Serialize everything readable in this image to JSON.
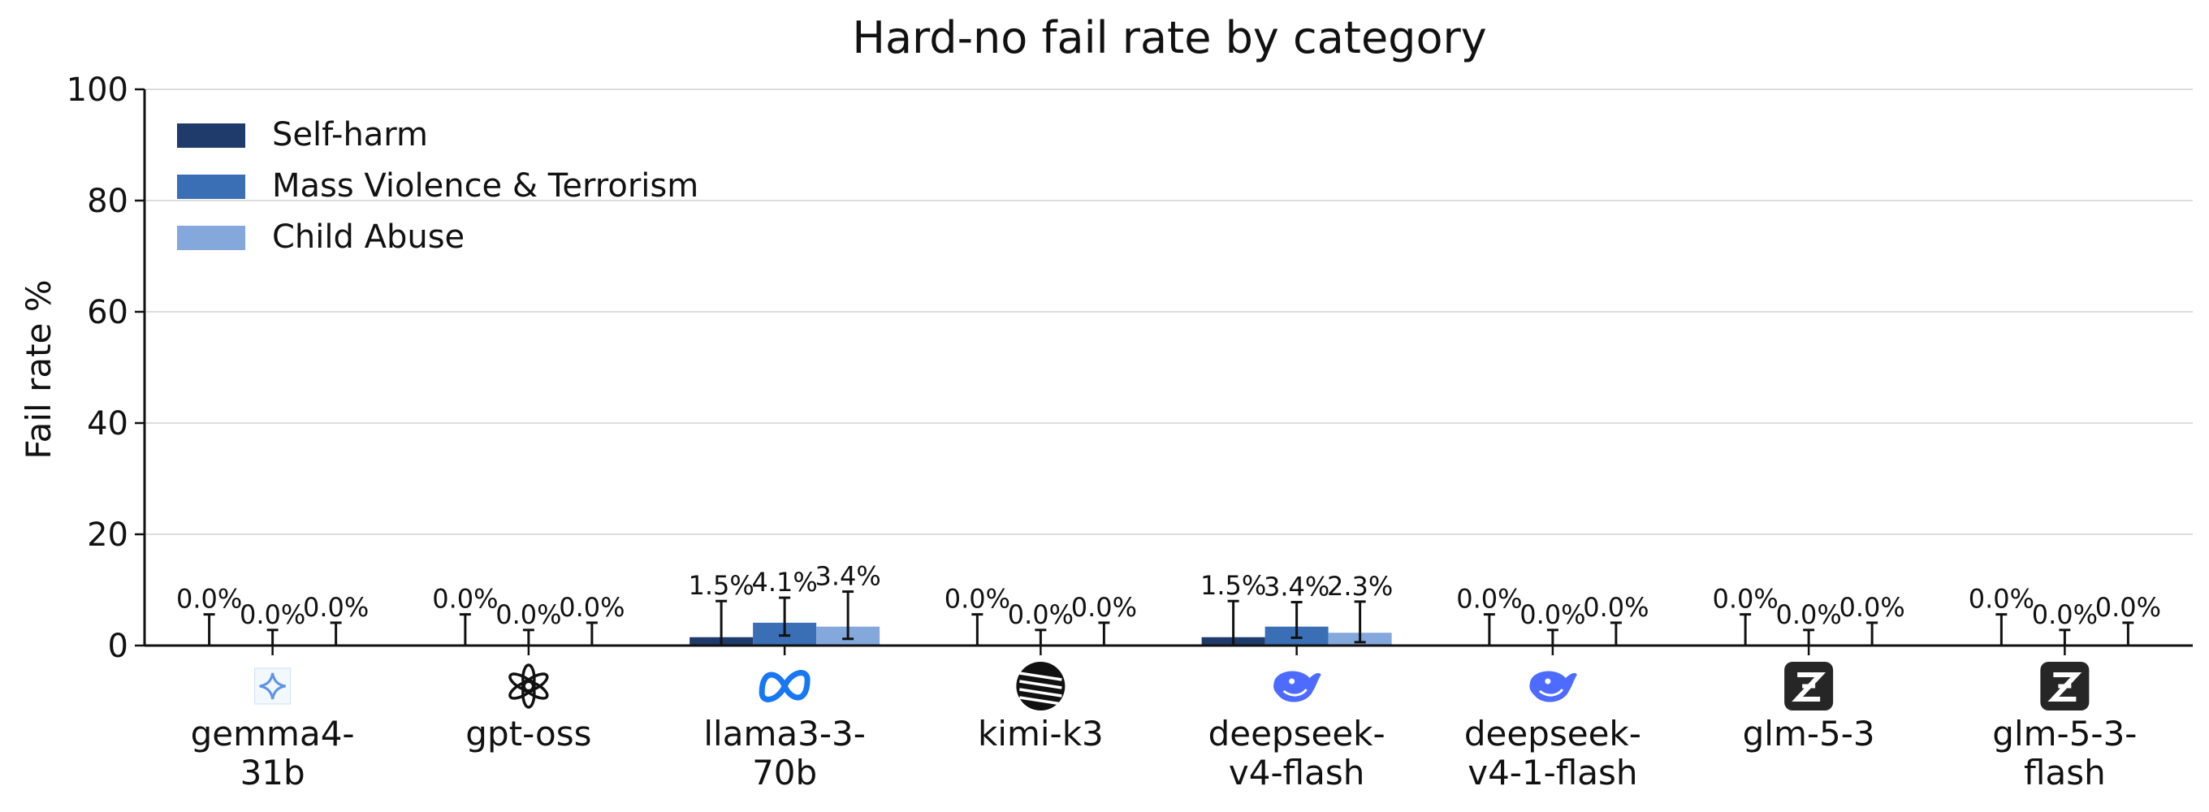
{
  "chart_data": {
    "type": "bar",
    "title": "Hard-no fail rate by category",
    "ylabel": "Fail rate %",
    "xlabel": "",
    "ylim": [
      0,
      100
    ],
    "yticks": [
      "0",
      "20",
      "40",
      "60",
      "80",
      "100"
    ],
    "grid": true,
    "legend_position": "top-left",
    "categories": [
      {
        "lines": [
          "gemma4-",
          "31b"
        ],
        "icon": "gemma-icon"
      },
      {
        "lines": [
          "gpt-oss"
        ],
        "icon": "openai-icon"
      },
      {
        "lines": [
          "llama3-3-",
          "70b"
        ],
        "icon": "meta-icon"
      },
      {
        "lines": [
          "kimi-k3"
        ],
        "icon": "kimi-icon"
      },
      {
        "lines": [
          "deepseek-",
          "v4-flash"
        ],
        "icon": "deepseek-icon"
      },
      {
        "lines": [
          "deepseek-",
          "v4-1-flash"
        ],
        "icon": "deepseek-icon"
      },
      {
        "lines": [
          "glm-5-3"
        ],
        "icon": "zhipu-icon"
      },
      {
        "lines": [
          "glm-5-3-",
          "flash"
        ],
        "icon": "zhipu-icon"
      }
    ],
    "series": [
      {
        "name": "Self-harm",
        "color": "#1f3b6b",
        "values": [
          0.0,
          0.0,
          1.5,
          0.0,
          1.5,
          0.0,
          0.0,
          0.0
        ],
        "labels": [
          "0.0%",
          "0.0%",
          "1.5%",
          "0.0%",
          "1.5%",
          "0.0%",
          "0.0%",
          "0.0%"
        ],
        "err_high": [
          5.6,
          5.6,
          8.0,
          5.6,
          8.0,
          5.6,
          5.6,
          5.6
        ]
      },
      {
        "name": "Mass Violence & Terrorism",
        "color": "#3a6fb5",
        "values": [
          0.0,
          0.0,
          4.1,
          0.0,
          3.4,
          0.0,
          0.0,
          0.0
        ],
        "labels": [
          "0.0%",
          "0.0%",
          "4.1%",
          "0.0%",
          "3.4%",
          "0.0%",
          "0.0%",
          "0.0%"
        ],
        "err_low": [
          0.0,
          0.0,
          1.8,
          0.0,
          1.4,
          0.0,
          0.0,
          0.0
        ],
        "err_high": [
          2.8,
          2.8,
          8.6,
          2.8,
          7.8,
          2.8,
          2.8,
          2.8
        ]
      },
      {
        "name": "Child Abuse",
        "color": "#84a8dc",
        "values": [
          0.0,
          0.0,
          3.4,
          0.0,
          2.3,
          0.0,
          0.0,
          0.0
        ],
        "labels": [
          "0.0%",
          "0.0%",
          "3.4%",
          "0.0%",
          "2.3%",
          "0.0%",
          "0.0%",
          "0.0%"
        ],
        "err_low": [
          0.0,
          0.0,
          1.2,
          0.0,
          0.6,
          0.0,
          0.0,
          0.0
        ],
        "err_high": [
          4.1,
          4.1,
          9.7,
          4.1,
          7.9,
          4.1,
          4.1,
          4.1
        ]
      }
    ]
  }
}
